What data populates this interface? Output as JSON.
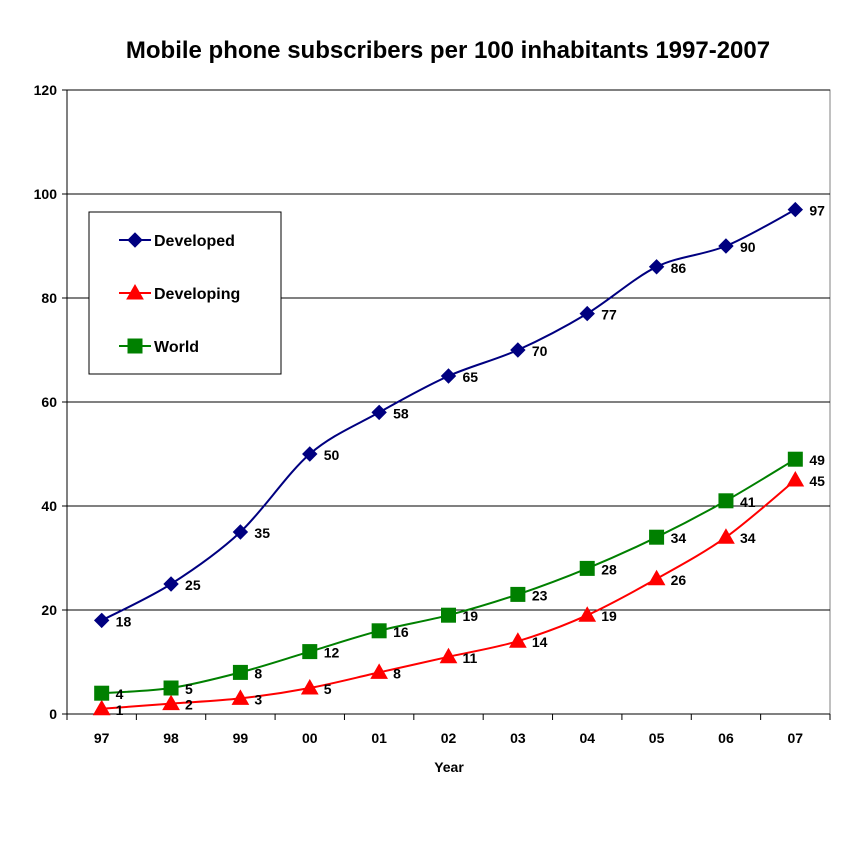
{
  "chart_data": {
    "type": "line",
    "title": "Mobile phone subscribers per 100 inhabitants 1997-2007",
    "xlabel": "Year",
    "ylabel": "",
    "categories": [
      "97",
      "98",
      "99",
      "00",
      "01",
      "02",
      "03",
      "04",
      "05",
      "06",
      "07"
    ],
    "ylim": [
      0,
      120
    ],
    "yticks": [
      0,
      20,
      40,
      60,
      80,
      100,
      120
    ],
    "grid": true,
    "legend_position": "top-left",
    "series": [
      {
        "name": "Developed",
        "color": "#000080",
        "marker": "diamond",
        "values": [
          18,
          25,
          35,
          50,
          58,
          65,
          70,
          77,
          86,
          90,
          97
        ]
      },
      {
        "name": "Developing",
        "color": "#ff0000",
        "marker": "triangle",
        "values": [
          1,
          2,
          3,
          5,
          8,
          11,
          14,
          19,
          26,
          34,
          45
        ]
      },
      {
        "name": "World",
        "color": "#008000",
        "marker": "square",
        "values": [
          4,
          5,
          8,
          12,
          16,
          19,
          23,
          28,
          34,
          41,
          49
        ]
      }
    ]
  }
}
